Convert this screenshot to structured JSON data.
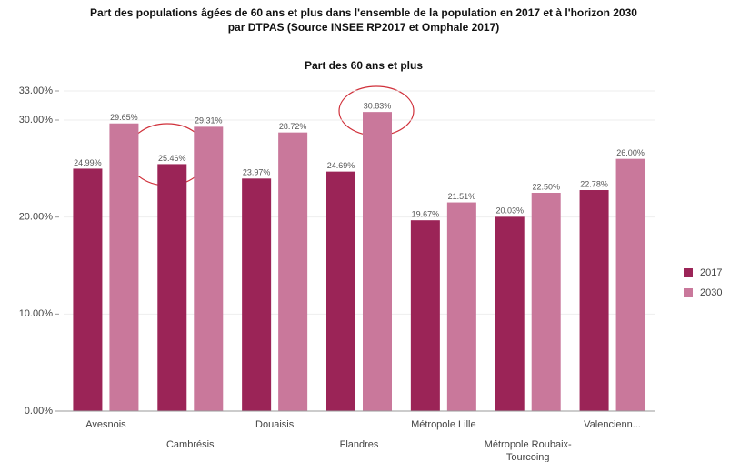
{
  "chart_data": {
    "type": "bar",
    "title": [
      "Part des populations âgées de 60 ans et plus dans l'ensemble de la population en 2017 et à l'horizon 2030",
      "par DTPAS (Source INSEE RP2017 et Omphale 2017)"
    ],
    "subtitle": "Part des 60 ans et plus",
    "categories": [
      "Avesnois",
      "Cambrésis",
      "Douaisis",
      "Flandres",
      "Métropole Lille",
      "Métropole Roubaix-Tourcoing",
      "Valencienn..."
    ],
    "series": [
      {
        "name": "2017",
        "color": "#9b2457",
        "values": [
          24.99,
          25.46,
          23.97,
          24.69,
          19.67,
          20.03,
          22.78
        ],
        "value_labels": [
          "24.99%",
          "25.46%",
          "23.97%",
          "24.69%",
          "19.67%",
          "20.03%",
          "22.78%"
        ]
      },
      {
        "name": "2030",
        "color": "#c9789b",
        "values": [
          29.65,
          29.31,
          28.72,
          30.83,
          21.51,
          22.5,
          26.0
        ],
        "value_labels": [
          "29.65%",
          "29.31%",
          "28.72%",
          "30.83%",
          "21.51%",
          "22.50%",
          "26.00%"
        ]
      }
    ],
    "ylim": [
      0,
      33
    ],
    "yticks": [
      {
        "value": 0,
        "label": "0.00%"
      },
      {
        "value": 10,
        "label": "10.00%"
      },
      {
        "value": 20,
        "label": "20.00%"
      },
      {
        "value": 30,
        "label": "30.00%"
      },
      {
        "value": 33,
        "label": "33.00%"
      }
    ],
    "grid": true,
    "legend": "right"
  }
}
